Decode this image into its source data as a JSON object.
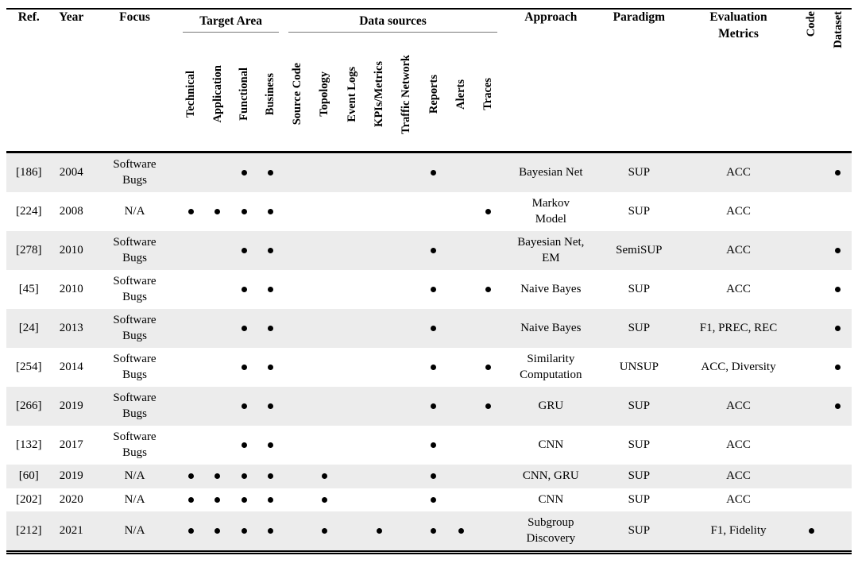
{
  "colors": {
    "row_shaded": "#ececec",
    "rule": "#000000",
    "group_underline": "#777777",
    "text": "#000000"
  },
  "table": {
    "header": {
      "ref": "Ref.",
      "year": "Year",
      "focus": "Focus",
      "groups": {
        "target_area": "Target Area",
        "data_sources": "Data sources"
      },
      "target_columns": [
        "Technical",
        "Application",
        "Functional",
        "Business"
      ],
      "source_columns": [
        "Source Code",
        "Topology",
        "Event Logs",
        "KPIs/Metrics",
        "Traffic Network",
        "Reports",
        "Alerts",
        "Traces"
      ],
      "approach": "Approach",
      "paradigm": "Paradigm",
      "evaluation_metrics": "Evaluation\nMetrics",
      "code": "Code",
      "dataset": "Dataset"
    },
    "rows": [
      {
        "ref": "[186]",
        "year": "2004",
        "focus": "Software\nBugs",
        "target": [
          0,
          0,
          1,
          1
        ],
        "sources": [
          0,
          0,
          0,
          0,
          0,
          1,
          0,
          0
        ],
        "approach": "Bayesian Net",
        "paradigm": "SUP",
        "metrics": "ACC",
        "code": 0,
        "dataset": 1
      },
      {
        "ref": "[224]",
        "year": "2008",
        "focus": "N/A",
        "target": [
          1,
          1,
          1,
          1
        ],
        "sources": [
          0,
          0,
          0,
          0,
          0,
          0,
          0,
          1
        ],
        "approach": "Markov\nModel",
        "paradigm": "SUP",
        "metrics": "ACC",
        "code": 0,
        "dataset": 0
      },
      {
        "ref": "[278]",
        "year": "2010",
        "focus": "Software\nBugs",
        "target": [
          0,
          0,
          1,
          1
        ],
        "sources": [
          0,
          0,
          0,
          0,
          0,
          1,
          0,
          0
        ],
        "approach": "Bayesian Net,\nEM",
        "paradigm": "SemiSUP",
        "metrics": "ACC",
        "code": 0,
        "dataset": 1
      },
      {
        "ref": "[45]",
        "year": "2010",
        "focus": "Software\nBugs",
        "target": [
          0,
          0,
          1,
          1
        ],
        "sources": [
          0,
          0,
          0,
          0,
          0,
          1,
          0,
          1
        ],
        "approach": "Naive Bayes",
        "paradigm": "SUP",
        "metrics": "ACC",
        "code": 0,
        "dataset": 1
      },
      {
        "ref": "[24]",
        "year": "2013",
        "focus": "Software\nBugs",
        "target": [
          0,
          0,
          1,
          1
        ],
        "sources": [
          0,
          0,
          0,
          0,
          0,
          1,
          0,
          0
        ],
        "approach": "Naive Bayes",
        "paradigm": "SUP",
        "metrics": "F1, PREC, REC",
        "code": 0,
        "dataset": 1
      },
      {
        "ref": "[254]",
        "year": "2014",
        "focus": "Software\nBugs",
        "target": [
          0,
          0,
          1,
          1
        ],
        "sources": [
          0,
          0,
          0,
          0,
          0,
          1,
          0,
          1
        ],
        "approach": "Similarity\nComputation",
        "paradigm": "UNSUP",
        "metrics": "ACC, Diversity",
        "code": 0,
        "dataset": 1
      },
      {
        "ref": "[266]",
        "year": "2019",
        "focus": "Software\nBugs",
        "target": [
          0,
          0,
          1,
          1
        ],
        "sources": [
          0,
          0,
          0,
          0,
          0,
          1,
          0,
          1
        ],
        "approach": "GRU",
        "paradigm": "SUP",
        "metrics": "ACC",
        "code": 0,
        "dataset": 1
      },
      {
        "ref": "[132]",
        "year": "2017",
        "focus": "Software\nBugs",
        "target": [
          0,
          0,
          1,
          1
        ],
        "sources": [
          0,
          0,
          0,
          0,
          0,
          1,
          0,
          0
        ],
        "approach": "CNN",
        "paradigm": "SUP",
        "metrics": "ACC",
        "code": 0,
        "dataset": 0
      },
      {
        "ref": "[60]",
        "year": "2019",
        "focus": "N/A",
        "target": [
          1,
          1,
          1,
          1
        ],
        "sources": [
          0,
          1,
          0,
          0,
          0,
          1,
          0,
          0
        ],
        "approach": "CNN, GRU",
        "paradigm": "SUP",
        "metrics": "ACC",
        "code": 0,
        "dataset": 0
      },
      {
        "ref": "[202]",
        "year": "2020",
        "focus": "N/A",
        "target": [
          1,
          1,
          1,
          1
        ],
        "sources": [
          0,
          1,
          0,
          0,
          0,
          1,
          0,
          0
        ],
        "approach": "CNN",
        "paradigm": "SUP",
        "metrics": "ACC",
        "code": 0,
        "dataset": 0
      },
      {
        "ref": "[212]",
        "year": "2021",
        "focus": "N/A",
        "target": [
          1,
          1,
          1,
          1
        ],
        "sources": [
          0,
          1,
          0,
          1,
          0,
          1,
          1,
          0
        ],
        "approach": "Subgroup\nDiscovery",
        "paradigm": "SUP",
        "metrics": "F1, Fidelity",
        "code": 1,
        "dataset": 0
      }
    ]
  }
}
